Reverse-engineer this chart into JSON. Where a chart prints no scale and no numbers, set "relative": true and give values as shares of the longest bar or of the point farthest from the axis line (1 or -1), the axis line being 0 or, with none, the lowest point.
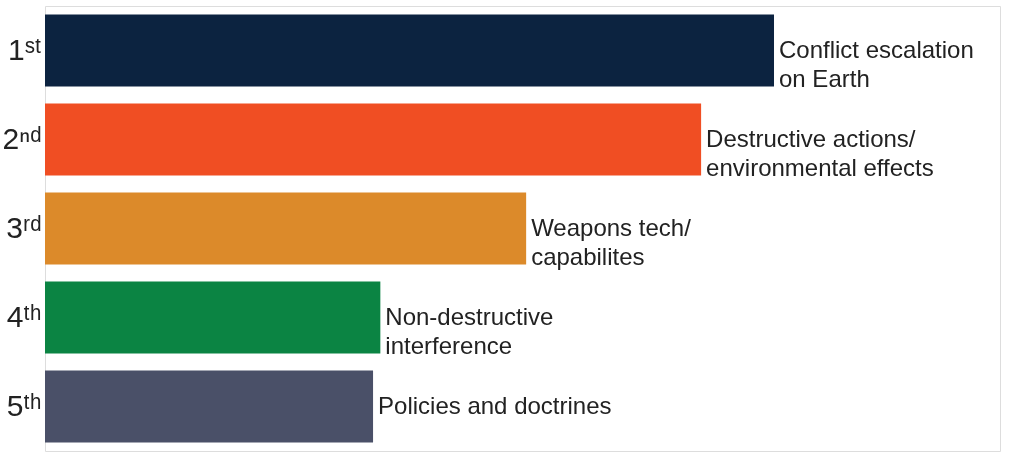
{
  "chart_data": {
    "type": "bar",
    "orientation": "horizontal",
    "relative": true,
    "categories": [
      "1ˢᵗ",
      "2ⁿᵈ",
      "3ʳᵈ",
      "4ᵗʰ",
      "5ᵗʰ"
    ],
    "values": [
      1,
      0.9,
      0.66,
      0.46,
      0.45
    ],
    "colors": [
      "#0c2340",
      "#f04e23",
      "#dc8a2a",
      "#0b8443",
      "#4a5068"
    ],
    "annotations": [
      {
        "text": "Conflict escalation\non Earth",
        "x": 1,
        "y": "1ˢᵗ"
      },
      {
        "text": "Destructive actions/\nenvironmental effects",
        "x": 0.9,
        "y": "2ⁿᵈ"
      },
      {
        "text": "Weapons tech/\ncapabilites",
        "x": 0.66,
        "y": "3ʳᵈ"
      },
      {
        "text": "Non-destructive\ninterference",
        "x": 0.46,
        "y": "4ᵗʰ"
      },
      {
        "text": "Policies and doctrines",
        "x": 0.45,
        "y": "5ᵗʰ"
      }
    ]
  }
}
